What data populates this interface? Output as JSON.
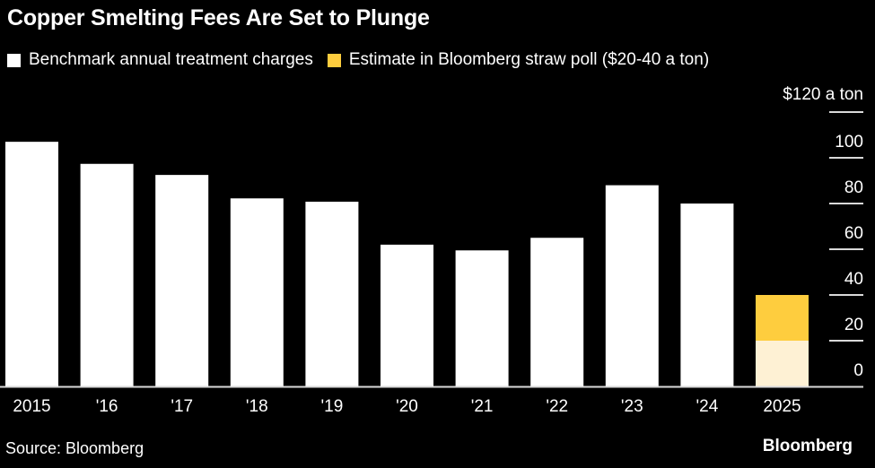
{
  "chart_data": {
    "type": "bar",
    "title": "Copper Smelting Fees Are Set to Plunge",
    "xlabel": "",
    "ylabel": "$ a ton",
    "ylim": [
      0,
      120
    ],
    "y_ticks": [
      0,
      20,
      40,
      60,
      80,
      100,
      120
    ],
    "y_tick_labels": [
      "0",
      "20",
      "40",
      "60",
      "80",
      "100",
      "$120 a ton"
    ],
    "y_axis_position": "right",
    "categories": [
      "2015",
      "'16",
      "'17",
      "'18",
      "'19",
      "'20",
      "'21",
      "'22",
      "'23",
      "'24",
      "2025"
    ],
    "series": [
      {
        "name": "Benchmark annual treatment charges",
        "color": "#ffffff",
        "values": [
          107,
          97.35,
          92.5,
          82.25,
          80.8,
          62,
          59.5,
          65,
          88,
          80,
          null
        ]
      },
      {
        "name": "Estimate in Bloomberg straw poll ($20-40 a ton)",
        "color": "#fecd3e",
        "range_values": [
          null,
          null,
          null,
          null,
          null,
          null,
          null,
          null,
          null,
          null,
          [
            20,
            40
          ]
        ],
        "base_color": "#fef1d4"
      }
    ],
    "legend": "top-left",
    "grid": false
  },
  "title": "Copper Smelting Fees Are Set to Plunge",
  "legend": [
    {
      "label": "Benchmark annual treatment charges",
      "color": "#ffffff"
    },
    {
      "label": "Estimate in Bloomberg straw poll ($20-40 a ton)",
      "color": "#fecd3e"
    }
  ],
  "source": "Source: Bloomberg",
  "brand": "Bloomberg",
  "colors": {
    "background": "#000000",
    "bar": "#ffffff",
    "estimate": "#fecd3e",
    "estimate_base": "#fef1d4",
    "axis": "#d9d9d9"
  }
}
